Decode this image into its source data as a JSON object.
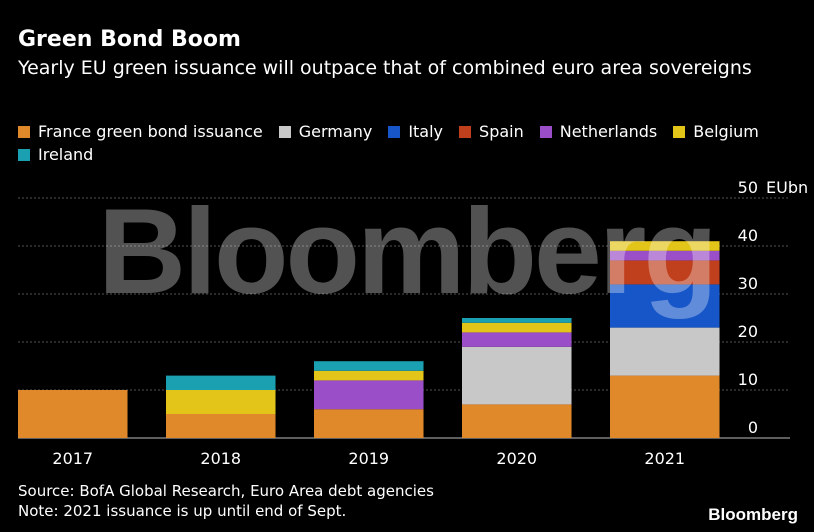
{
  "header": {
    "title": "Green Bond Boom",
    "subtitle": "Yearly EU green issuance will outpace that of combined euro area sovereigns"
  },
  "chart_data": {
    "type": "bar",
    "stacked": true,
    "categories": [
      "2017",
      "2018",
      "2019",
      "2020",
      "2021"
    ],
    "series": [
      {
        "name": "France green bond issuance",
        "color": "#e0892a",
        "values": [
          10,
          5,
          6,
          7,
          13
        ]
      },
      {
        "name": "Germany",
        "color": "#c8c8c8",
        "values": [
          0,
          0,
          0,
          12,
          10
        ]
      },
      {
        "name": "Italy",
        "color": "#1756c8",
        "values": [
          0,
          0,
          0,
          0,
          9
        ]
      },
      {
        "name": "Spain",
        "color": "#c0401e",
        "values": [
          0,
          0,
          0,
          0,
          5
        ]
      },
      {
        "name": "Netherlands",
        "color": "#9a4fc8",
        "values": [
          0,
          0,
          6,
          3,
          2
        ]
      },
      {
        "name": "Belgium",
        "color": "#e3c51a",
        "values": [
          0,
          5,
          2,
          2,
          2
        ]
      },
      {
        "name": "Ireland",
        "color": "#1aa0b0",
        "values": [
          0,
          3,
          2,
          1,
          0
        ]
      }
    ],
    "ylim": [
      0,
      50
    ],
    "yticks": [
      0,
      10,
      20,
      30,
      40,
      50
    ],
    "yunit": "EUbn",
    "grid": true,
    "legend_position": "top-left"
  },
  "footer": {
    "source": "Source: BofA Global Research, Euro Area debt agencies",
    "note": "Note: 2021 issuance is up until end of Sept."
  },
  "watermark": "Bloomberg",
  "logo": "Bloomberg"
}
